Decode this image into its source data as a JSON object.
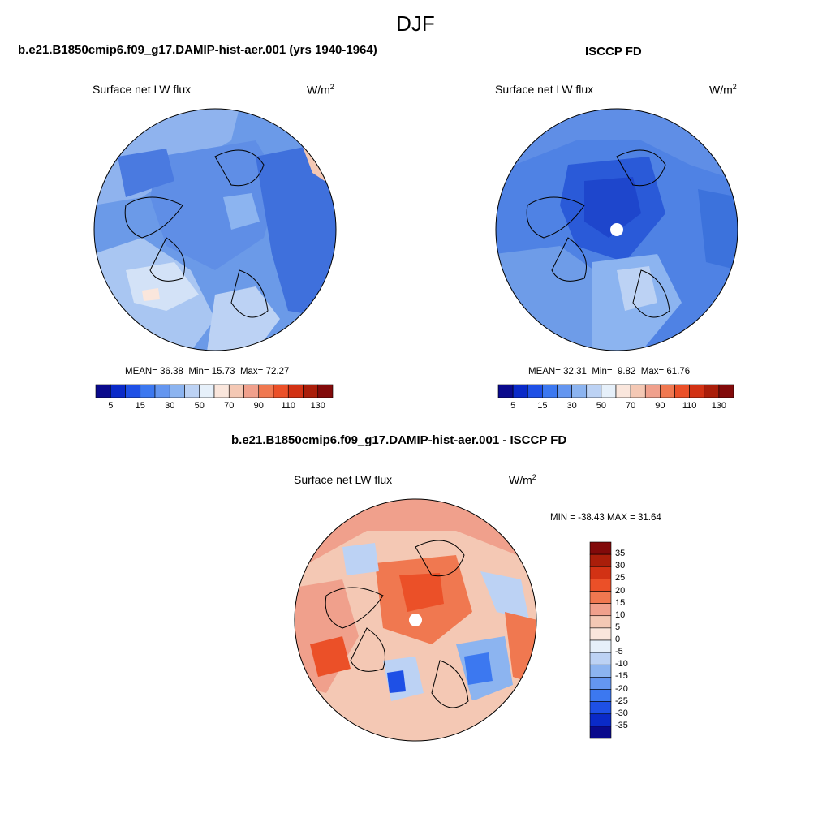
{
  "figure": {
    "season": "DJF"
  },
  "panels": [
    {
      "title": "b.e21.B1850cmip6.f09_g17.DAMIP-hist-aer.001 (yrs 1940-1964)",
      "variable": "Surface net LW flux",
      "units_base": "W/m",
      "units_exp": "2",
      "stats": {
        "mean_label": "MEAN=",
        "mean": "36.38",
        "min_label": "Min=",
        "min": "15.73",
        "max_label": "Max=",
        "max": "72.27"
      }
    },
    {
      "title": "ISCCP FD",
      "variable": "Surface net LW flux",
      "units_base": "W/m",
      "units_exp": "2",
      "stats": {
        "mean_label": "MEAN=",
        "mean": "32.31",
        "min_label": "Min=",
        "min": "9.82",
        "max_label": "Max=",
        "max": "61.76"
      }
    },
    {
      "title": "b.e21.B1850cmip6.f09_g17.DAMIP-hist-aer.001 - ISCCP FD",
      "variable": "Surface net LW flux",
      "units_base": "W/m",
      "units_exp": "2",
      "stats_text": "MIN = -38.43 MAX =  31.64"
    }
  ],
  "colorbar_field": {
    "colors": [
      "#0a0a8c",
      "#0a2ac8",
      "#1e50e6",
      "#3c78f0",
      "#6496f0",
      "#8cb4f0",
      "#bcd2f4",
      "#e6f0fa",
      "#fae6dc",
      "#f4c8b4",
      "#f0a08c",
      "#f07850",
      "#eb5028",
      "#d23214",
      "#aa1e0a",
      "#820a0a"
    ],
    "tick_labels": [
      "5",
      "15",
      "30",
      "50",
      "70",
      "90",
      "110",
      "130"
    ]
  },
  "colorbar_diff": {
    "colors": [
      "#820a0a",
      "#aa1e0a",
      "#d23214",
      "#eb5028",
      "#f07850",
      "#f0a08c",
      "#f4c8b4",
      "#fae6dc",
      "#e6f0fa",
      "#bcd2f4",
      "#8cb4f0",
      "#6496f0",
      "#3c78f0",
      "#1e50e6",
      "#0a2ac8",
      "#0a0a8c"
    ],
    "tick_labels": [
      "35",
      "30",
      "25",
      "20",
      "15",
      "10",
      "5",
      "0",
      "-5",
      "-10",
      "-15",
      "-20",
      "-25",
      "-30",
      "-35"
    ]
  }
}
